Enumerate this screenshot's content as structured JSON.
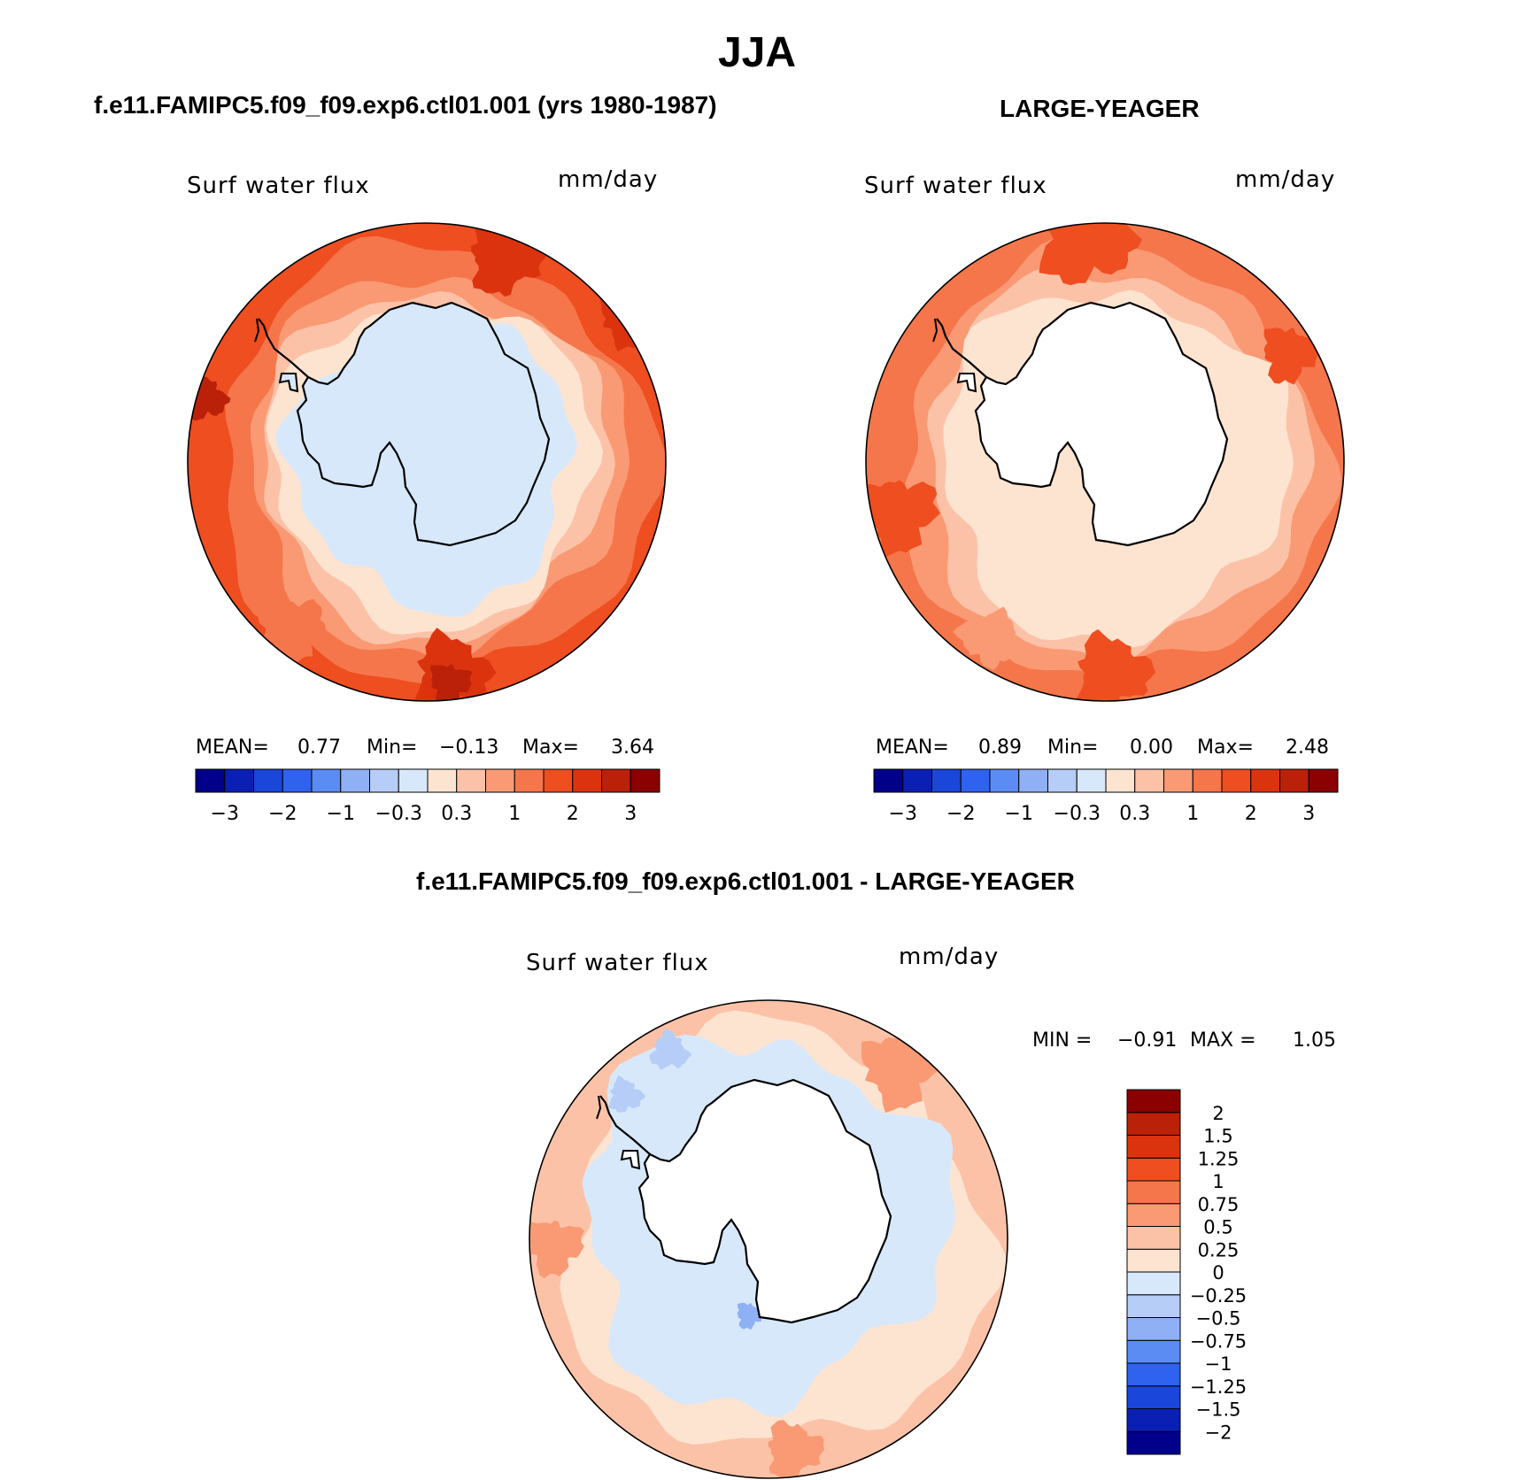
{
  "figure": {
    "title": "JJA",
    "panels": [
      {
        "id": "model",
        "title": "f.e11.FAMIPC5.f09_f09.exp6.ctl01.001 (yrs 1980-1987)",
        "variable": "Surf water flux",
        "units": "mm/day",
        "stats": {
          "mean_label": "MEAN=",
          "mean": "0.77",
          "min_label": "Min=",
          "min": "−0.13",
          "max_label": "Max=",
          "max": "3.64"
        }
      },
      {
        "id": "obs",
        "title": "LARGE-YEAGER",
        "variable": "Surf water flux",
        "units": "mm/day",
        "stats": {
          "mean_label": "MEAN=",
          "mean": "0.89",
          "min_label": "Min=",
          "min": "0.00",
          "max_label": "Max=",
          "max": "2.48"
        }
      },
      {
        "id": "diff",
        "title": "f.e11.FAMIPC5.f09_f09.exp6.ctl01.001 - LARGE-YEAGER",
        "variable": "Surf water flux",
        "units": "mm/day",
        "stats": {
          "min_label": "MIN =",
          "min": "−0.91",
          "max_label": "MAX =",
          "max": "1.05"
        }
      }
    ]
  },
  "colorbars": {
    "field": {
      "colors": [
        "#00008b",
        "#0a1fb4",
        "#1a46d9",
        "#2f62ee",
        "#5b8cf4",
        "#8fb0f5",
        "#b6cdf7",
        "#d7e8fb",
        "#fde4d1",
        "#fcc2a7",
        "#f99a74",
        "#f5764a",
        "#ee4e20",
        "#dc330f",
        "#bb2008",
        "#8b0000"
      ],
      "tick_labels": [
        "−3",
        "−2",
        "−1",
        "−0.3",
        "0.3",
        "1",
        "2",
        "3"
      ]
    },
    "diff": {
      "colors": [
        "#00008b",
        "#0a1fb4",
        "#1a46d9",
        "#2f62ee",
        "#5b8cf4",
        "#8fb0f5",
        "#b6cdf7",
        "#d7e8fb",
        "#fde4d1",
        "#fcc2a7",
        "#f99a74",
        "#f5764a",
        "#ee4e20",
        "#dc330f",
        "#bb2008",
        "#8b0000"
      ],
      "tick_labels": [
        "−2",
        "−1.5",
        "−1.25",
        "−1",
        "−0.75",
        "−0.5",
        "−0.25",
        "0",
        "0.25",
        "0.5",
        "0.75",
        "1",
        "1.25",
        "1.5",
        "2"
      ]
    },
    "land_color": "#ffffff",
    "coastline_color": "#000000"
  }
}
